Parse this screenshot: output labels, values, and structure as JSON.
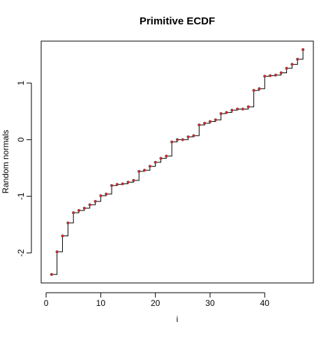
{
  "chart_data": {
    "type": "line",
    "title": "Primitive ECDF",
    "xlabel": "i",
    "ylabel": "Random normals",
    "xlim": [
      -0.9,
      48.9
    ],
    "ylim": [
      -2.53,
      1.74
    ],
    "xticks": [
      0,
      10,
      20,
      30,
      40
    ],
    "yticks": [
      -2,
      -1,
      0,
      1
    ],
    "x_tick_labels": [
      "0",
      "10",
      "20",
      "30",
      "40"
    ],
    "y_tick_labels": [
      "-2",
      "-1",
      "0",
      "1"
    ],
    "grid": false,
    "series": [
      {
        "style": "step",
        "color": "#000000",
        "points": [
          [
            1,
            -2.38
          ],
          [
            2,
            -1.98
          ],
          [
            3,
            -1.7
          ],
          [
            4,
            -1.47
          ],
          [
            5,
            -1.29
          ],
          [
            6,
            -1.25
          ],
          [
            7,
            -1.21
          ],
          [
            8,
            -1.15
          ],
          [
            9,
            -1.09
          ],
          [
            10,
            -0.99
          ],
          [
            11,
            -0.96
          ],
          [
            12,
            -0.81
          ],
          [
            13,
            -0.79
          ],
          [
            14,
            -0.78
          ],
          [
            15,
            -0.75
          ],
          [
            16,
            -0.72
          ],
          [
            17,
            -0.56
          ],
          [
            18,
            -0.54
          ],
          [
            19,
            -0.47
          ],
          [
            20,
            -0.4
          ],
          [
            21,
            -0.33
          ],
          [
            22,
            -0.29
          ],
          [
            23,
            -0.04
          ],
          [
            24,
            0.0
          ],
          [
            25,
            0.0
          ],
          [
            26,
            0.05
          ],
          [
            27,
            0.07
          ],
          [
            28,
            0.26
          ],
          [
            29,
            0.29
          ],
          [
            30,
            0.32
          ],
          [
            31,
            0.35
          ],
          [
            32,
            0.46
          ],
          [
            33,
            0.48
          ],
          [
            34,
            0.52
          ],
          [
            35,
            0.54
          ],
          [
            36,
            0.54
          ],
          [
            37,
            0.58
          ],
          [
            38,
            0.87
          ],
          [
            39,
            0.9
          ],
          [
            40,
            1.12
          ],
          [
            41,
            1.13
          ],
          [
            42,
            1.14
          ],
          [
            43,
            1.18
          ],
          [
            44,
            1.26
          ],
          [
            45,
            1.33
          ],
          [
            46,
            1.42
          ],
          [
            47,
            1.59
          ]
        ]
      },
      {
        "style": "points",
        "color": "#d62728",
        "values_from_series": 0
      }
    ]
  }
}
